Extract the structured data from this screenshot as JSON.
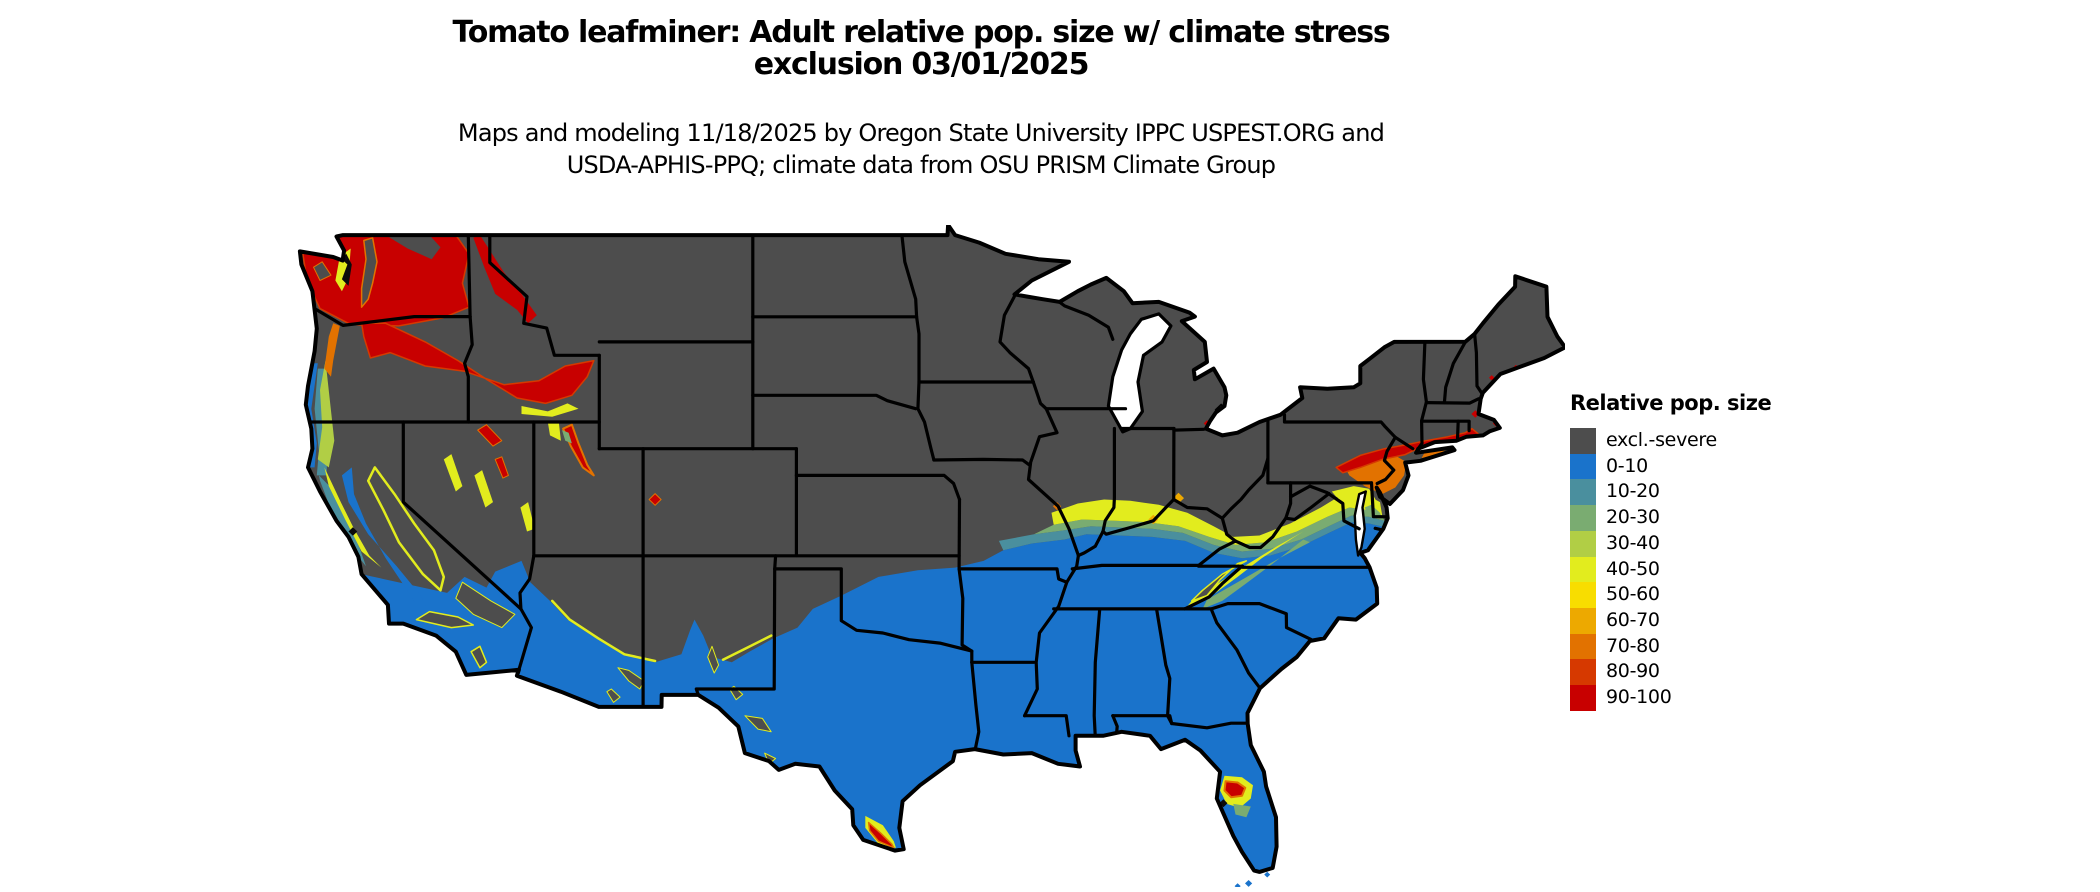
{
  "title": {
    "line1": "Tomato leafminer: Adult relative pop. size w/ climate stress",
    "line2": "exclusion 03/01/2025"
  },
  "subtitle": {
    "line1": "Maps and modeling 11/18/2025 by Oregon State University IPPC USPEST.ORG and",
    "line2": "USDA-APHIS-PPQ; climate data from OSU PRISM Climate Group"
  },
  "legend": {
    "title": "Relative pop. size",
    "items": [
      {
        "label": "excl.-severe",
        "color": "#4d4d4d"
      },
      {
        "label": "0-10",
        "color": "#1a73cb"
      },
      {
        "label": "10-20",
        "color": "#4a8f9e"
      },
      {
        "label": "20-30",
        "color": "#7aac71"
      },
      {
        "label": "30-40",
        "color": "#b1ce45"
      },
      {
        "label": "40-50",
        "color": "#e2ec1e"
      },
      {
        "label": "50-60",
        "color": "#f8dd00"
      },
      {
        "label": "60-70",
        "color": "#eda900"
      },
      {
        "label": "70-80",
        "color": "#e27200"
      },
      {
        "label": "80-90",
        "color": "#d63900"
      },
      {
        "label": "90-100",
        "color": "#c80000"
      }
    ]
  },
  "map": {
    "region": "Contiguous United States",
    "water_color": "#ffffff",
    "boundary_color": "#000000",
    "summary": "Northern states excluded (gray); southern tier low population (blue); high relative population (red/orange) in Pacific Northwest, southern New England coast and New Jersey, central Florida and south Texas; transition bands (teal/green/yellow) along the Ohio Valley, Virginia piedmont and mid-Atlantic."
  }
}
